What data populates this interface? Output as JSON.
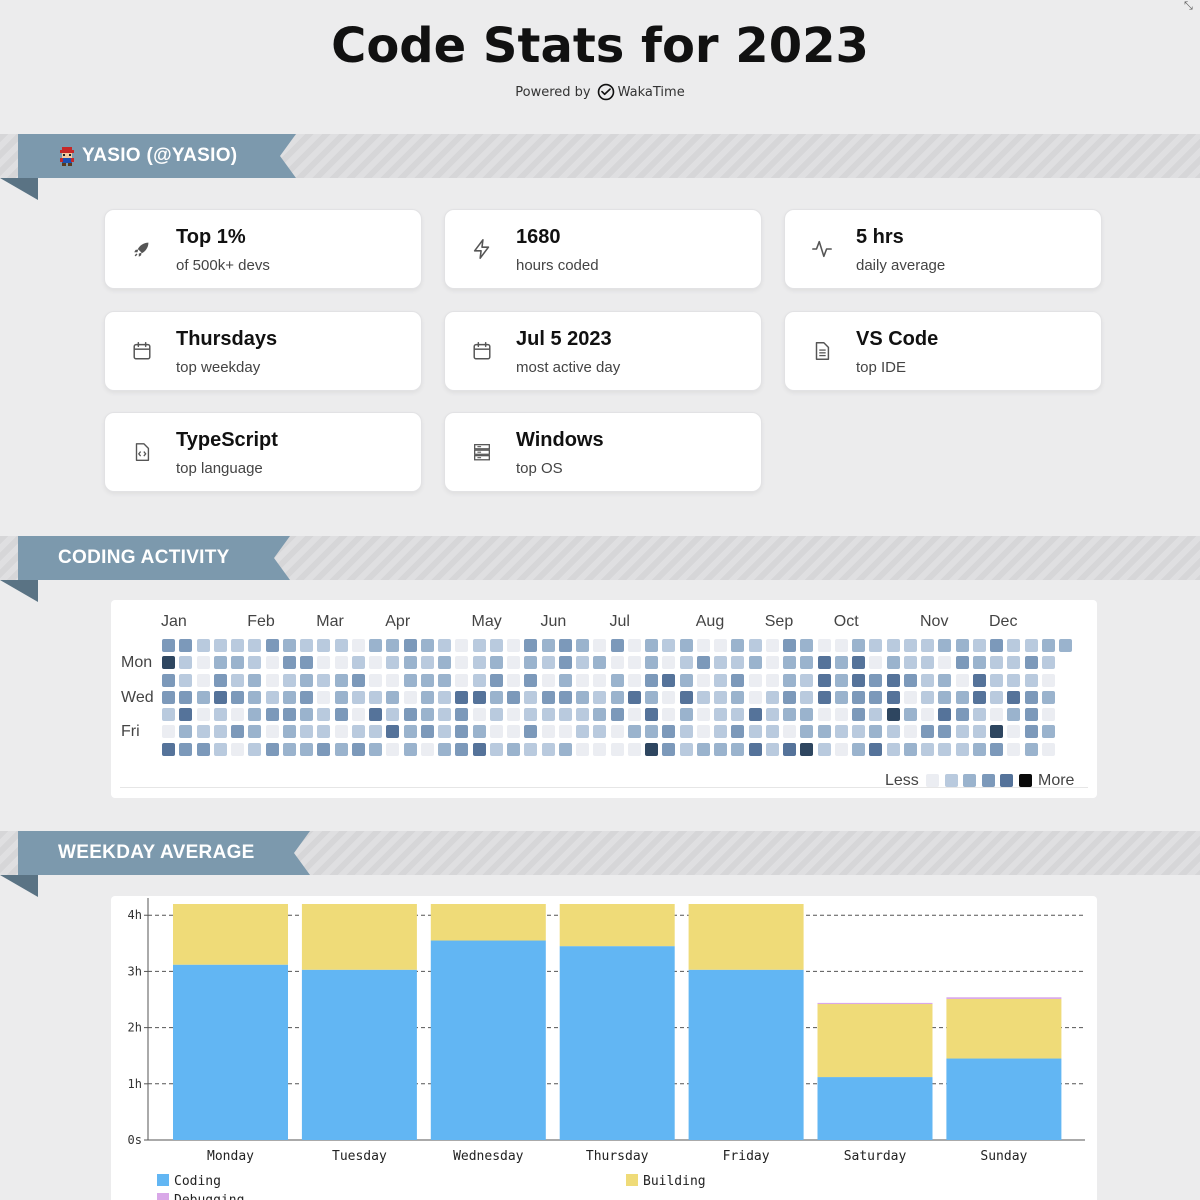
{
  "header": {
    "title": "Code Stats for 2023",
    "powered_prefix": "Powered by",
    "powered_brand": "WakaTime"
  },
  "profile_section": {
    "label": "YASIO (@YASIO)"
  },
  "stats": [
    {
      "icon": "rocket-icon",
      "value": "Top 1%",
      "label": "of 500k+ devs"
    },
    {
      "icon": "lightning-icon",
      "value": "1680",
      "label": "hours coded"
    },
    {
      "icon": "activity-icon",
      "value": "5 hrs",
      "label": "daily average"
    },
    {
      "icon": "calendar-icon",
      "value": "Thursdays",
      "label": "top weekday"
    },
    {
      "icon": "calendar-icon",
      "value": "Jul 5 2023",
      "label": "most active day"
    },
    {
      "icon": "document-icon",
      "value": "VS Code",
      "label": "top IDE"
    },
    {
      "icon": "code-file-icon",
      "value": "TypeScript",
      "label": "top language"
    },
    {
      "icon": "server-icon",
      "value": "Windows",
      "label": "top OS"
    }
  ],
  "activity_section": {
    "label": "CODING ACTIVITY",
    "months": [
      "Jan",
      "Feb",
      "Mar",
      "Apr",
      "May",
      "Jun",
      "Jul",
      "Aug",
      "Sep",
      "Oct",
      "Nov",
      "Dec"
    ],
    "day_labels": [
      "Mon",
      "Wed",
      "Fri"
    ],
    "legend_less": "Less",
    "legend_more": "More",
    "colors": [
      "#ebedf2",
      "#b9cade",
      "#9ab3cd",
      "#7c99ba",
      "#55739a",
      "#2e4660",
      "#0a0a0a"
    ]
  },
  "weekday_section": {
    "label": "WEEKDAY AVERAGE"
  },
  "chart_data": {
    "type": "bar",
    "stacked": true,
    "categories": [
      "Monday",
      "Tuesday",
      "Wednesday",
      "Thursday",
      "Friday",
      "Saturday",
      "Sunday"
    ],
    "series": [
      {
        "name": "Coding",
        "color": "#62b6f3",
        "values": [
          3.12,
          3.03,
          3.55,
          3.45,
          3.03,
          1.12,
          1.45
        ]
      },
      {
        "name": "Building",
        "color": "#efdb78",
        "values": [
          1.08,
          1.17,
          0.65,
          0.75,
          1.17,
          1.3,
          1.06
        ]
      },
      {
        "name": "Debugging",
        "color": "#d9a8e8",
        "values": [
          0,
          0,
          0,
          0,
          0,
          0.02,
          0.03
        ]
      }
    ],
    "y_ticks": [
      "0s",
      "1h",
      "2h",
      "3h",
      "4h"
    ],
    "ylim": [
      0,
      4.2
    ],
    "grid": true,
    "legend_position": "bottom"
  }
}
